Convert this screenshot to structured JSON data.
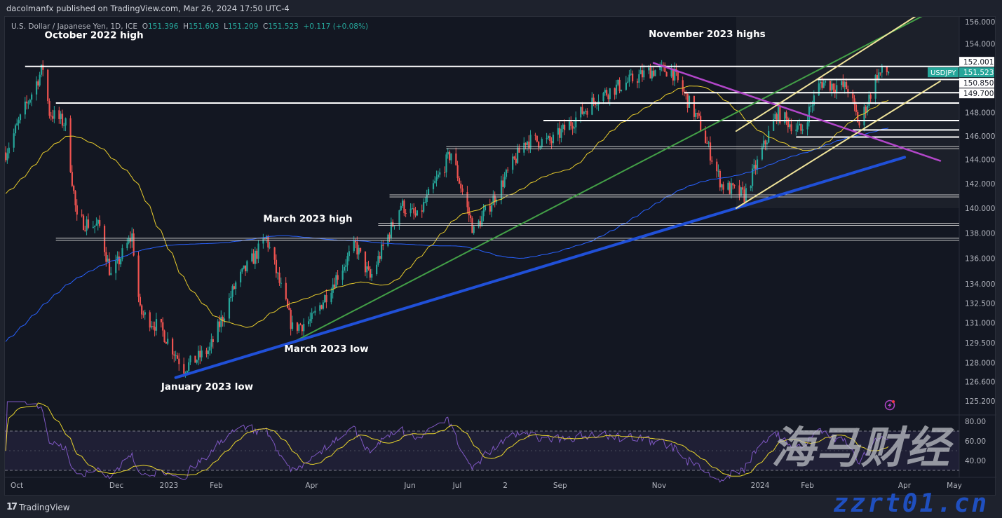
{
  "header": {
    "publisher": "dacolmanfx published on TradingView.com, Mar 26, 2024 17:50 UTC-4",
    "symbol_desc": "U.S. Dollar / Japanese Yen, 1D, ICE",
    "ohlc": {
      "o_label": "O",
      "o": "151.396",
      "h_label": "H",
      "h": "151.603",
      "l_label": "L",
      "l": "151.209",
      "c_label": "C",
      "c": "151.523",
      "change": "+0.117 (+0.08%)"
    }
  },
  "footer": {
    "brand": "TradingView",
    "logo_icon": "tradingview-logo-icon"
  },
  "watermark": {
    "text": "海马财经",
    "url": "zzrt01.cn"
  },
  "colors": {
    "up": "#26a69a",
    "down": "#ef5350",
    "ma_fast": "#e8cc2c",
    "ma_slow": "#2962ff",
    "rsi": "#7e57c2",
    "rsi_ma": "#e8d42c",
    "green_line": "#43a047",
    "blue_line": "#2050d8",
    "purple_line": "#b246c9",
    "channel": "#efe39a",
    "level": "#ffffff"
  },
  "chart_data": {
    "type": "candlestick",
    "symbol": "USDJPY",
    "scale": "log",
    "ylim": [
      124.5,
      157
    ],
    "price_ticks": [
      "156.000",
      "154.000",
      "152.001",
      "151.523",
      "150.850",
      "149.700",
      "148.000",
      "146.000",
      "144.000",
      "142.000",
      "140.000",
      "138.000",
      "136.000",
      "134.000",
      "132.500",
      "131.000",
      "129.500",
      "128.000",
      "126.600",
      "125.200"
    ],
    "price_tick_values": [
      156,
      154,
      148,
      146,
      144,
      142,
      140,
      138,
      136,
      134,
      132.5,
      131,
      129.5,
      128,
      126.6,
      125.2
    ],
    "highlight_labels": [
      {
        "text": "152.001",
        "value": 152.001,
        "style": "white"
      },
      {
        "text": "151.523",
        "value": 151.523,
        "style": "last",
        "tag": "USDJPY"
      },
      {
        "text": "150.850",
        "value": 150.85,
        "style": "white"
      },
      {
        "text": "149.700",
        "value": 149.7,
        "style": "white"
      }
    ],
    "time_ticks": [
      {
        "label": "Oct",
        "date": "2022-10-01"
      },
      {
        "label": "Dec",
        "date": "2022-12-01"
      },
      {
        "label": "2023",
        "date": "2023-01-01"
      },
      {
        "label": "Feb",
        "date": "2023-02-01"
      },
      {
        "label": "Apr",
        "date": "2023-04-01"
      },
      {
        "label": "Jun",
        "date": "2023-06-01"
      },
      {
        "label": "Jul",
        "date": "2023-07-01"
      },
      {
        "label": "2",
        "date": "2023-08-01"
      },
      {
        "label": "Sep",
        "date": "2023-09-01"
      },
      {
        "label": "Nov",
        "date": "2023-11-01"
      },
      {
        "label": "2024",
        "date": "2024-01-01"
      },
      {
        "label": "Feb",
        "date": "2024-02-01"
      },
      {
        "label": "Apr",
        "date": "2024-04-01"
      },
      {
        "label": "May",
        "date": "2024-05-01"
      }
    ],
    "closes": [
      [
        "2022-09-28",
        144.6
      ],
      [
        "2022-10-21",
        151.9
      ],
      [
        "2022-10-25",
        148.0
      ],
      [
        "2022-11-04",
        147.0
      ],
      [
        "2022-11-11",
        139.0
      ],
      [
        "2022-11-25",
        138.5
      ],
      [
        "2022-12-02",
        134.6
      ],
      [
        "2022-12-15",
        137.8
      ],
      [
        "2022-12-20",
        131.8
      ],
      [
        "2023-01-02",
        130.5
      ],
      [
        "2023-01-16",
        127.6
      ],
      [
        "2023-02-01",
        129.0
      ],
      [
        "2023-02-17",
        134.0
      ],
      [
        "2023-03-01",
        136.2
      ],
      [
        "2023-03-08",
        137.6
      ],
      [
        "2023-03-24",
        130.6
      ],
      [
        "2023-04-05",
        131.2
      ],
      [
        "2023-04-20",
        134.5
      ],
      [
        "2023-05-02",
        137.0
      ],
      [
        "2023-05-11",
        134.4
      ],
      [
        "2023-05-30",
        140.3
      ],
      [
        "2023-06-09",
        139.2
      ],
      [
        "2023-06-30",
        144.6
      ],
      [
        "2023-07-14",
        138.1
      ],
      [
        "2023-07-28",
        141.2
      ],
      [
        "2023-08-15",
        145.6
      ],
      [
        "2023-08-31",
        145.5
      ],
      [
        "2023-09-29",
        149.4
      ],
      [
        "2023-10-31",
        151.6
      ],
      [
        "2023-11-13",
        151.7
      ],
      [
        "2023-11-30",
        147.2
      ],
      [
        "2023-12-14",
        141.9
      ],
      [
        "2023-12-28",
        141.0
      ],
      [
        "2024-01-17",
        147.9
      ],
      [
        "2024-02-01",
        146.4
      ],
      [
        "2024-02-13",
        150.6
      ],
      [
        "2024-03-01",
        150.1
      ],
      [
        "2024-03-08",
        146.9
      ],
      [
        "2024-03-19",
        151.3
      ],
      [
        "2024-03-26",
        151.523
      ]
    ],
    "indicators": [
      "SMA 50",
      "SMA 200",
      "RSI 14",
      "RSI MA 14"
    ],
    "levels": [
      {
        "price": 152.0,
        "from": "2022-10-10",
        "style": "single"
      },
      {
        "price": 150.85,
        "from": "2024-02-11",
        "style": "single"
      },
      {
        "price": 149.7,
        "from": "2023-11-21",
        "style": "single"
      },
      {
        "price": 148.8,
        "from": "2022-10-29",
        "style": "single"
      },
      {
        "price": 147.3,
        "from": "2023-08-26",
        "style": "single"
      },
      {
        "price": 146.5,
        "from": "2024-03-04",
        "style": "single"
      },
      {
        "price": 145.9,
        "from": "2024-01-29",
        "style": "single"
      },
      {
        "price": 145.0,
        "from": "2023-06-27",
        "style": "double"
      },
      {
        "price": 141.0,
        "from": "2023-05-23",
        "style": "double"
      },
      {
        "price": 138.7,
        "from": "2023-05-16",
        "style": "double"
      },
      {
        "price": 137.5,
        "from": "2022-10-29",
        "style": "double"
      }
    ],
    "trendlines": [
      {
        "name": "green",
        "from": [
          "2023-03-24",
          129.5
        ],
        "to": [
          "2024-04-16",
          156.5
        ],
        "width": 2
      },
      {
        "name": "blue",
        "from": [
          "2023-01-11",
          126.9
        ],
        "to": [
          "2024-04-05",
          144.2
        ],
        "width": 4
      },
      {
        "name": "purple",
        "from": [
          "2023-11-02",
          152.3
        ],
        "to": [
          "2024-04-27",
          143.9
        ],
        "width": 2.5
      },
      {
        "name": "channel",
        "from": [
          "2023-12-23",
          140.0
        ],
        "to": [
          "2024-04-27",
          150.7
        ],
        "width": 2
      },
      {
        "name": "channel",
        "from": [
          "2023-12-23",
          146.4
        ],
        "to": [
          "2024-04-12",
          156.5
        ],
        "width": 2
      }
    ],
    "annotations": [
      {
        "text": "October 2022 high",
        "date": "2022-10-22",
        "price": 154.5
      },
      {
        "text": "November 2023 highs",
        "date": "2023-10-30",
        "price": 154.6
      },
      {
        "text": "March 2023 high",
        "date": "2023-03-06",
        "price": 138.9
      },
      {
        "text": "March 2023 low",
        "date": "2023-03-19",
        "price": 128.8
      },
      {
        "text": "January 2023 low",
        "date": "2023-01-02",
        "price": 126.0
      }
    ],
    "rsi_ticks": [
      "80.00",
      "60.00",
      "40.00"
    ],
    "rsi_band": [
      30,
      70
    ]
  }
}
